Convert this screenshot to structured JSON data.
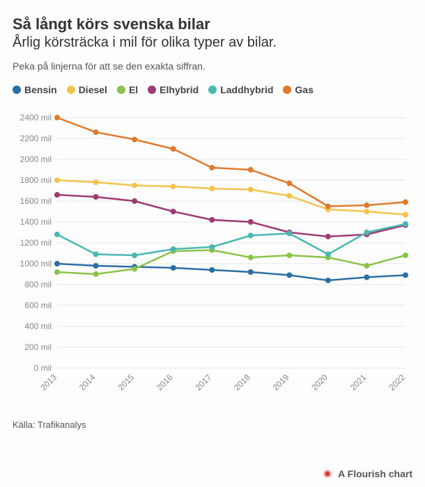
{
  "title": "Så långt körs svenska bilar",
  "subtitle": "Årlig körsträcka i mil för olika typer av bilar.",
  "hint": "Peka på linjerna för att se den exakta siffran.",
  "source_label": "Källa: Trafikanalys",
  "footer_credit": "A Flourish chart",
  "footer_icon_color": "#d6352b",
  "chart": {
    "type": "line",
    "background_color": "#fdfdfd",
    "grid_color": "#e5e5e5",
    "axis_label_color": "#888888",
    "axis_font_size": 12,
    "x_labels": [
      "2013",
      "2014",
      "2015",
      "2016",
      "2017",
      "2018",
      "2019",
      "2020",
      "2021",
      "2022"
    ],
    "y_min": 0,
    "y_max": 2400,
    "y_tick_step": 200,
    "y_suffix": " mil",
    "line_width": 2.5,
    "marker_radius": 4,
    "series": [
      {
        "name": "Bensin",
        "color": "#2b6ea4",
        "values": [
          1000,
          980,
          970,
          960,
          940,
          920,
          890,
          840,
          870,
          890
        ]
      },
      {
        "name": "Diesel",
        "color": "#f2c34d",
        "values": [
          1800,
          1780,
          1750,
          1740,
          1720,
          1710,
          1650,
          1520,
          1500,
          1470
        ]
      },
      {
        "name": "El",
        "color": "#8bc34a",
        "values": [
          920,
          900,
          950,
          1120,
          1130,
          1060,
          1080,
          1060,
          980,
          1080
        ]
      },
      {
        "name": "Elhybrid",
        "color": "#a03a72",
        "values": [
          1660,
          1640,
          1600,
          1500,
          1420,
          1400,
          1300,
          1260,
          1280,
          1370
        ]
      },
      {
        "name": "Laddhybrid",
        "color": "#49b7b2",
        "values": [
          1280,
          1090,
          1080,
          1140,
          1160,
          1270,
          1290,
          1090,
          1300,
          1380
        ]
      },
      {
        "name": "Gas",
        "color": "#e07b2e",
        "values": [
          2400,
          2260,
          2190,
          2100,
          1920,
          1900,
          1770,
          1550,
          1560,
          1590
        ]
      }
    ]
  }
}
